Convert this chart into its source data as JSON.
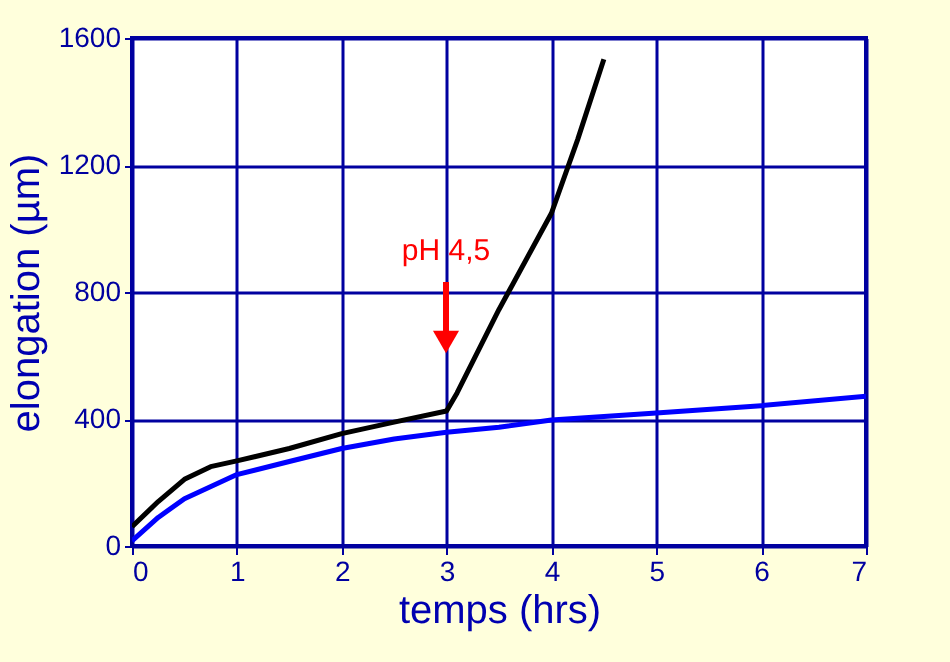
{
  "chart_data": {
    "type": "line",
    "xlabel": "temps (hrs)",
    "ylabel": "elongation (µm)",
    "xlim": [
      0,
      7
    ],
    "xticks": [
      0,
      1,
      2,
      3,
      4,
      5,
      6,
      7
    ],
    "ylim": [
      0,
      1600
    ],
    "yticks": [
      0,
      400,
      800,
      1200,
      1600
    ],
    "grid": true,
    "annotations": [
      "pH 4,5"
    ],
    "series": [
      {
        "color": "#000000",
        "x": [
          0,
          0.25,
          0.5,
          0.75,
          1,
          1.5,
          2,
          2.5,
          3,
          3.1,
          3.5,
          4,
          4.25,
          4.5
        ],
        "values": [
          61,
          140,
          210,
          250,
          268,
          307,
          354,
          390,
          425,
          482,
          745,
          1048,
          1280,
          1533
        ]
      },
      {
        "color": "#0000ff",
        "x": [
          0,
          0.25,
          0.5,
          1,
          1.5,
          2,
          2.5,
          3,
          3.5,
          4,
          5,
          6,
          7
        ],
        "values": [
          16,
          90,
          149,
          225,
          266,
          307,
          337,
          358,
          374,
          397,
          419,
          442,
          472
        ]
      }
    ]
  }
}
